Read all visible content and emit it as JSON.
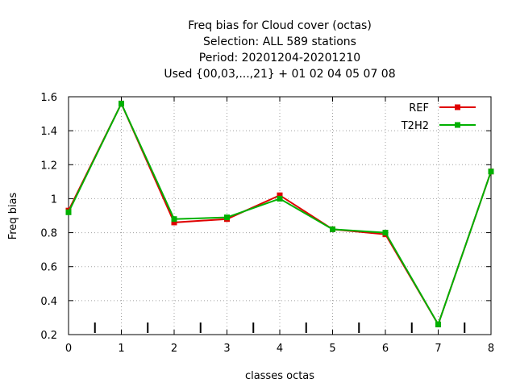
{
  "chart_data": {
    "type": "line",
    "title_lines": [
      "Freq bias  for Cloud cover (octas)",
      "Selection: ALL    589 stations",
      "Period: 20201204-20201210",
      "Used {00,03,...,21} + 01 02 04 05 07 08"
    ],
    "xlabel": "classes octas",
    "ylabel": "Freq bias",
    "xlim": [
      0,
      8
    ],
    "ylim": [
      0.2,
      1.6
    ],
    "xticks": [
      0,
      1,
      2,
      3,
      4,
      5,
      6,
      7,
      8
    ],
    "yticks": [
      0.2,
      0.4,
      0.6,
      0.8,
      1,
      1.2,
      1.4,
      1.6
    ],
    "minor_x_ticks": [
      0.5,
      1.5,
      2.5,
      3.5,
      4.5,
      5.5,
      6.5,
      7.5
    ],
    "grid": true,
    "legend_position": "top-right",
    "x": [
      0,
      1,
      2,
      3,
      4,
      5,
      6,
      7,
      8
    ],
    "series": [
      {
        "name": "REF",
        "color": "#e00000",
        "values": [
          0.93,
          1.56,
          0.86,
          0.88,
          1.02,
          0.82,
          0.79,
          0.26,
          1.16
        ]
      },
      {
        "name": "T2H2",
        "color": "#00b000",
        "values": [
          0.92,
          1.56,
          0.88,
          0.89,
          1.0,
          0.82,
          0.8,
          0.26,
          1.16
        ]
      }
    ]
  }
}
